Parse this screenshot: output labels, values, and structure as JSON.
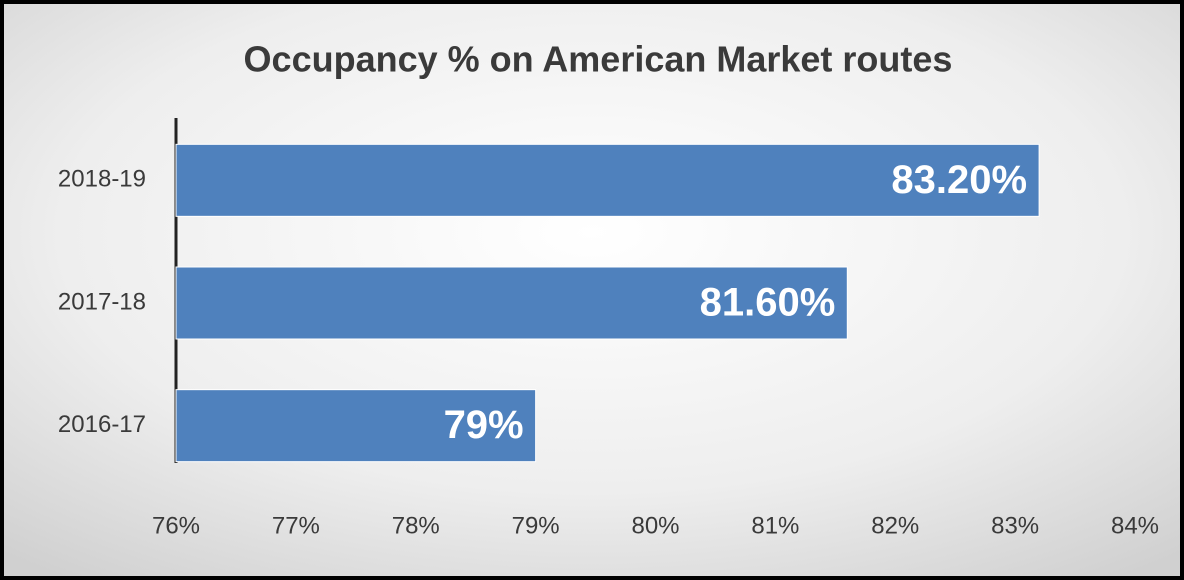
{
  "chart_data": {
    "type": "barh",
    "title": "Occupancy % on American Market routes",
    "categories": [
      "2018-19",
      "2017-18",
      "2016-17"
    ],
    "values": [
      83.2,
      81.6,
      79
    ],
    "value_labels": [
      "83.20%",
      "81.60%",
      "79%"
    ],
    "color": "#4f81bd",
    "xlim": [
      76,
      84
    ],
    "xticks": [
      {
        "value": 76,
        "label": "76%"
      },
      {
        "value": 77,
        "label": "77%"
      },
      {
        "value": 78,
        "label": "78%"
      },
      {
        "value": 79,
        "label": "79%"
      },
      {
        "value": 80,
        "label": "80%"
      },
      {
        "value": 81,
        "label": "81%"
      },
      {
        "value": 82,
        "label": "82%"
      },
      {
        "value": 83,
        "label": "83%"
      },
      {
        "value": 84,
        "label": "84%"
      }
    ],
    "grid": true
  }
}
